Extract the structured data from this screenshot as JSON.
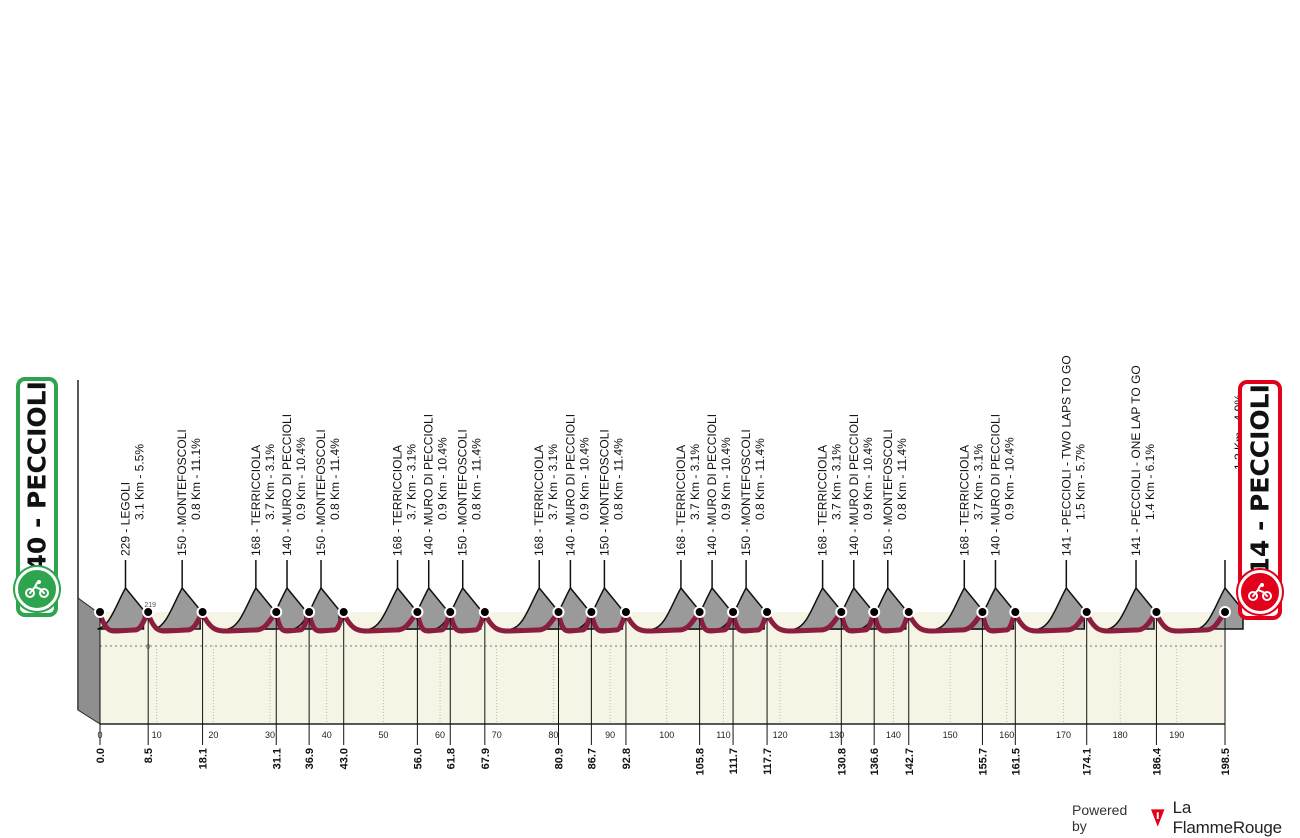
{
  "start": {
    "label": "140 - PECCIOLI",
    "icon": "cyclist-icon",
    "color": "#2ea44f"
  },
  "finish": {
    "label": "114 - PECCIOLI",
    "icon": "cyclist-icon",
    "color": "#e2001a"
  },
  "footer": {
    "powered_by": "Powered by",
    "brand": "La FlammeRouge",
    "brand_color": "#e2001a"
  },
  "colors": {
    "area_fill": "#f6f4e4",
    "profile_line": "#8b1e3f",
    "climb_fill": "#9a9a9a"
  },
  "chart_data": {
    "type": "area",
    "xlabel": "",
    "ylabel": "",
    "xlim": [
      0,
      198.5
    ],
    "x_ticks": [
      0,
      10,
      20,
      30,
      40,
      50,
      60,
      70,
      80,
      90,
      100,
      110,
      120,
      130,
      140,
      150,
      160,
      170,
      180,
      190
    ],
    "x_tick_labels": [
      "0",
      "10",
      "20",
      "30",
      "40",
      "50",
      "60",
      "70",
      "80",
      "90",
      "100",
      "110",
      "120",
      "130",
      "140",
      "150",
      "160",
      "170",
      "180",
      "190"
    ],
    "inline_labels": [
      {
        "x": 8.5,
        "label": "219"
      },
      {
        "x": 8.5,
        "label": "0"
      }
    ],
    "checkpoints": [
      {
        "km": 0.0,
        "label": "0.0"
      },
      {
        "km": 8.5,
        "label": "8.5"
      },
      {
        "km": 18.1,
        "label": "18.1"
      },
      {
        "km": 31.1,
        "label": "31.1"
      },
      {
        "km": 36.9,
        "label": "36.9"
      },
      {
        "km": 43.0,
        "label": "43.0"
      },
      {
        "km": 56.0,
        "label": "56.0"
      },
      {
        "km": 61.8,
        "label": "61.8"
      },
      {
        "km": 67.9,
        "label": "67.9"
      },
      {
        "km": 80.9,
        "label": "80.9"
      },
      {
        "km": 86.7,
        "label": "86.7"
      },
      {
        "km": 92.8,
        "label": "92.8"
      },
      {
        "km": 105.8,
        "label": "105.8"
      },
      {
        "km": 111.7,
        "label": "111.7"
      },
      {
        "km": 117.7,
        "label": "117.7"
      },
      {
        "km": 130.8,
        "label": "130.8"
      },
      {
        "km": 136.6,
        "label": "136.6"
      },
      {
        "km": 142.7,
        "label": "142.7"
      },
      {
        "km": 155.7,
        "label": "155.7"
      },
      {
        "km": 161.5,
        "label": "161.5"
      },
      {
        "km": 174.1,
        "label": "174.1"
      },
      {
        "km": 186.4,
        "label": "186.4"
      },
      {
        "km": 198.5,
        "label": "198.5"
      }
    ],
    "climbs": [
      {
        "km": 4.5,
        "line1": "229 - LEGOLI",
        "line2": "3.1 Km - 5.5%"
      },
      {
        "km": 14.5,
        "line1": "150 - MONTEFOSCOLI",
        "line2": "0.8 Km - 11.1%"
      },
      {
        "km": 27.5,
        "line1": "168 - TERRICCIOLA",
        "line2": "3.7 Km - 3.1%"
      },
      {
        "km": 33.0,
        "line1": "140 - MURO DI PECCIOLI",
        "line2": "0.9 Km - 10.4%"
      },
      {
        "km": 39.0,
        "line1": "150 - MONTEFOSCOLI",
        "line2": "0.8 Km - 11.4%"
      },
      {
        "km": 52.5,
        "line1": "168 - TERRICCIOLA",
        "line2": "3.7 Km - 3.1%"
      },
      {
        "km": 58.0,
        "line1": "140 - MURO DI PECCIOLI",
        "line2": "0.9 Km - 10.4%"
      },
      {
        "km": 64.0,
        "line1": "150 - MONTEFOSCOLI",
        "line2": "0.8 Km - 11.4%"
      },
      {
        "km": 77.5,
        "line1": "168 - TERRICCIOLA",
        "line2": "3.7 Km - 3.1%"
      },
      {
        "km": 83.0,
        "line1": "140 - MURO DI PECCIOLI",
        "line2": "0.9 Km - 10.4%"
      },
      {
        "km": 89.0,
        "line1": "150 - MONTEFOSCOLI",
        "line2": "0.8 Km - 11.4%"
      },
      {
        "km": 102.5,
        "line1": "168 - TERRICCIOLA",
        "line2": "3.7 Km - 3.1%"
      },
      {
        "km": 108.0,
        "line1": "140 - MURO DI PECCIOLI",
        "line2": "0.9 Km - 10.4%"
      },
      {
        "km": 114.0,
        "line1": "150 - MONTEFOSCOLI",
        "line2": "0.8 Km - 11.4%"
      },
      {
        "km": 127.5,
        "line1": "168 - TERRICCIOLA",
        "line2": "3.7 Km - 3.1%"
      },
      {
        "km": 133.0,
        "line1": "140 - MURO DI PECCIOLI",
        "line2": "0.9 Km - 10.4%"
      },
      {
        "km": 139.0,
        "line1": "150 - MONTEFOSCOLI",
        "line2": "0.8 Km - 11.4%"
      },
      {
        "km": 152.5,
        "line1": "168 - TERRICCIOLA",
        "line2": "3.7 Km - 3.1%"
      },
      {
        "km": 158.0,
        "line1": "140 - MURO DI PECCIOLI",
        "line2": "0.9 Km - 10.4%"
      },
      {
        "km": 170.5,
        "line1": "141 - PECCIOLI - TWO LAPS TO GO",
        "line2": "1.5 Km - 5.7%"
      },
      {
        "km": 182.8,
        "line1": "141 - PECCIOLI - ONE LAP TO GO",
        "line2": "1.4 Km - 6.1%"
      },
      {
        "km": 198.5,
        "line1": "",
        "line2": "1.2 Km - 4.9%"
      }
    ]
  }
}
